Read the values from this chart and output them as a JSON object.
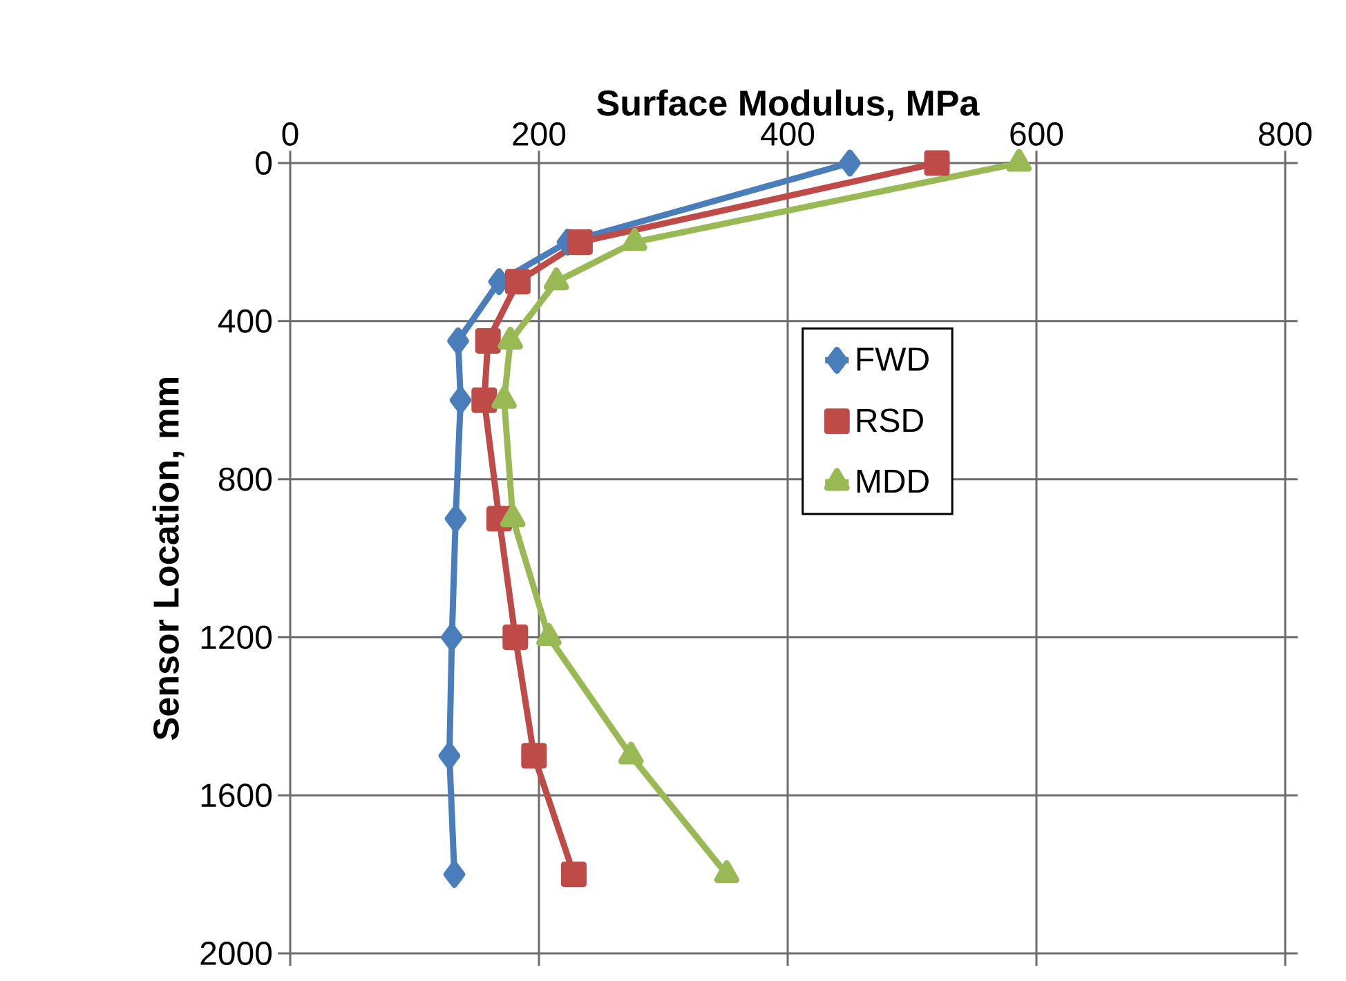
{
  "chart_data": {
    "type": "line",
    "xlabel": "Surface Modulus, MPa",
    "ylabel": "Sensor Location, mm",
    "xlim": [
      0,
      800
    ],
    "xticks": [
      0,
      200,
      400,
      600,
      800
    ],
    "ylim": [
      2000,
      0
    ],
    "yticks": [
      0,
      400,
      800,
      1200,
      1600,
      2000
    ],
    "grid": true,
    "legend": "right",
    "line_style": "solid",
    "series": [
      {
        "name": "FWD",
        "color": "#4a7ebb",
        "marker": "diamond",
        "x": [
          450,
          223,
          168,
          135,
          137,
          133,
          130,
          128,
          132
        ],
        "values": [
          0,
          200,
          300,
          450,
          600,
          900,
          1200,
          1500,
          1800
        ]
      },
      {
        "name": "RSD",
        "color": "#be4b48",
        "marker": "square",
        "x": [
          520,
          233,
          183,
          159,
          156,
          168,
          181,
          196,
          228
        ],
        "values": [
          0,
          200,
          300,
          450,
          600,
          900,
          1200,
          1500,
          1800
        ]
      },
      {
        "name": "MDD",
        "color": "#98b954",
        "marker": "triangle",
        "x": [
          586,
          277,
          214,
          177,
          172,
          179,
          208,
          274,
          351
        ],
        "values": [
          0,
          200,
          300,
          450,
          600,
          900,
          1200,
          1500,
          1800
        ]
      }
    ]
  }
}
